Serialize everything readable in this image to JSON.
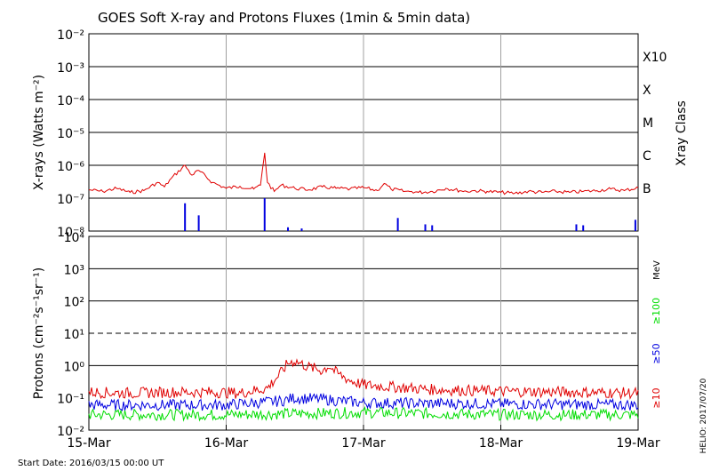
{
  "chart_data": [
    {
      "type": "line",
      "title": "GOES Soft X-ray and Protons Fluxes   (1min & 5min data)",
      "ylabel": "X-rays (Watts m⁻²)",
      "yscale": "log",
      "ylim": [
        1e-08,
        0.01
      ],
      "y_ticks": [
        "10⁻²",
        "10⁻³",
        "10⁻⁴",
        "10⁻⁵",
        "10⁻⁶",
        "10⁻⁷",
        "10⁻⁸"
      ],
      "right_axis_label": "Xray Class",
      "classes": [
        {
          "label": "X10",
          "value": 0.001
        },
        {
          "label": "X",
          "value": 0.0001
        },
        {
          "label": "M",
          "value": 1e-05
        },
        {
          "label": "C",
          "value": 1e-06
        },
        {
          "label": "B",
          "value": 1e-07
        }
      ],
      "grid": true,
      "series": [
        {
          "color": "#e00000",
          "x": [
            0,
            0.1,
            0.2,
            0.3,
            0.4,
            0.5,
            0.55,
            0.6,
            0.7,
            0.75,
            0.8,
            0.9,
            1.0,
            1.1,
            1.2,
            1.25,
            1.28,
            1.3,
            1.35,
            1.4,
            1.5,
            1.6,
            1.7,
            1.8,
            1.9,
            2.0,
            2.1,
            2.15,
            2.2,
            2.3,
            2.35,
            2.4,
            2.5,
            2.6,
            2.7,
            2.75,
            2.8,
            2.9,
            3.0,
            3.1,
            3.2,
            3.3,
            3.4,
            3.5,
            3.6,
            3.7,
            3.8,
            3.9,
            4.0
          ],
          "y": [
            1.8e-07,
            1.6e-07,
            2e-07,
            1.5e-07,
            1.7e-07,
            3e-07,
            2.2e-07,
            4e-07,
            1e-06,
            5e-07,
            7e-07,
            3e-07,
            2e-07,
            2.3e-07,
            1.9e-07,
            2.5e-07,
            2.4e-06,
            3e-07,
            1.6e-07,
            2.5e-07,
            2e-07,
            1.8e-07,
            2.2e-07,
            2e-07,
            1.9e-07,
            2.1e-07,
            1.7e-07,
            2.8e-07,
            1.9e-07,
            1.6e-07,
            1.6e-07,
            1.5e-07,
            1.6e-07,
            2e-07,
            1.7e-07,
            1.6e-07,
            1.7e-07,
            1.6e-07,
            1.5e-07,
            1.4e-07,
            1.6e-07,
            1.5e-07,
            1.6e-07,
            1.5e-07,
            1.6e-07,
            1.7e-07,
            1.9e-07,
            1.7e-07,
            2.1e-07
          ]
        },
        {
          "color": "#0000e0",
          "x": [
            0.7,
            0.8,
            1.28,
            1.45,
            1.55,
            2.25,
            2.45,
            2.5,
            3.55,
            3.6,
            3.98
          ],
          "y": [
            7e-08,
            3e-08,
            1e-07,
            1.3e-08,
            1.2e-08,
            2.5e-08,
            1.6e-08,
            1.5e-08,
            1.6e-08,
            1.5e-08,
            2.2e-08
          ]
        }
      ]
    },
    {
      "type": "line",
      "ylabel": "Protons (cm⁻²s⁻¹sr⁻¹)",
      "yscale": "log",
      "ylim": [
        0.01,
        10000
      ],
      "y_ticks": [
        "10⁴",
        "10³",
        "10²",
        "10¹",
        "10⁰",
        "10⁻¹",
        "10⁻²"
      ],
      "threshold_dashed": 10,
      "unit_label": "MeV",
      "series": [
        {
          "name": "≥10",
          "color": "#e00000",
          "x": [
            0,
            0.3,
            0.6,
            0.9,
            1.1,
            1.3,
            1.4,
            1.45,
            1.5,
            1.6,
            1.7,
            1.75,
            1.8,
            1.9,
            2.0,
            2.2,
            2.5,
            3.0,
            3.5,
            4.0
          ],
          "y": [
            0.15,
            0.14,
            0.15,
            0.15,
            0.14,
            0.2,
            0.6,
            1.2,
            1.4,
            0.9,
            0.7,
            1.0,
            0.6,
            0.35,
            0.25,
            0.22,
            0.18,
            0.16,
            0.15,
            0.14
          ]
        },
        {
          "name": "≥50",
          "color": "#0000e0",
          "x": [
            0,
            1.0,
            1.4,
            1.5,
            1.7,
            2.0,
            3.0,
            4.0
          ],
          "y": [
            0.06,
            0.06,
            0.08,
            0.1,
            0.09,
            0.07,
            0.065,
            0.06
          ]
        },
        {
          "name": "≥100",
          "color": "#00dd00",
          "x": [
            0,
            1.0,
            2.0,
            3.0,
            4.0
          ],
          "y": [
            0.03,
            0.03,
            0.035,
            0.03,
            0.03
          ]
        }
      ]
    }
  ],
  "x_axis": {
    "tick_labels": [
      "15-Mar",
      "16-Mar",
      "17-Mar",
      "18-Mar",
      "19-Mar"
    ],
    "start_date_text": "Start Date: 2016/03/15 00:00 UT",
    "footer_right": "HELIO: 2017/07/20"
  }
}
